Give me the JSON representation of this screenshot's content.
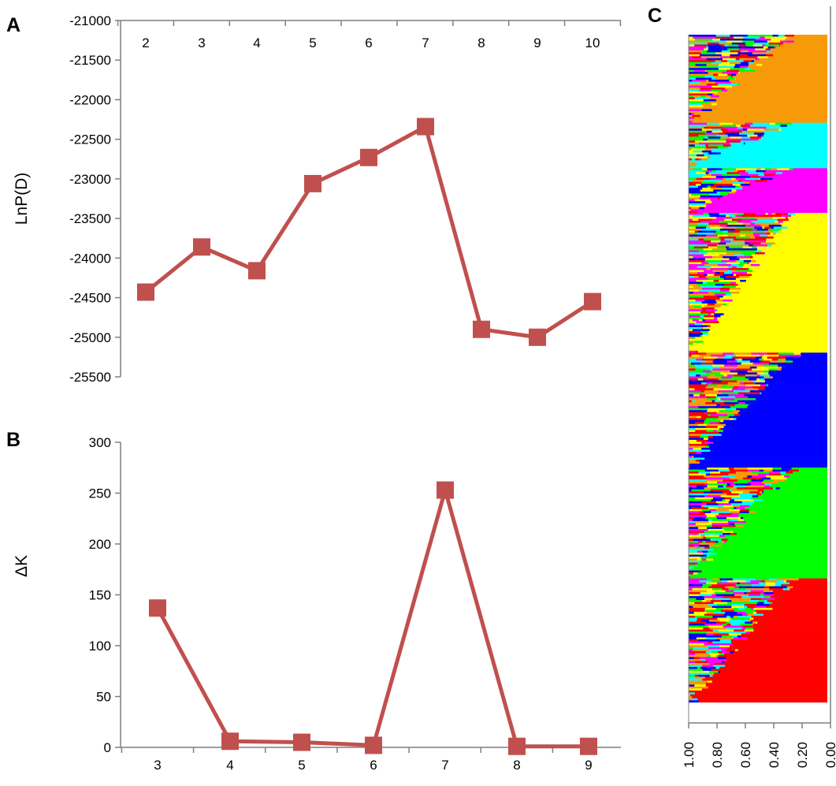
{
  "panels": {
    "a": "A",
    "b": "B",
    "c": "C"
  },
  "chart_data": [
    {
      "id": "A",
      "type": "line",
      "ylabel": "LnP(D)",
      "x": [
        2,
        3,
        4,
        5,
        6,
        7,
        8,
        9,
        10
      ],
      "y": [
        -24430,
        -23860,
        -24160,
        -23060,
        -22730,
        -22340,
        -24900,
        -25000,
        -24550
      ],
      "yticks": [
        -21000,
        -21500,
        -22000,
        -22500,
        -23000,
        -23500,
        -24000,
        -24500,
        -25000,
        -25500
      ],
      "xtick_labels": [
        "2",
        "3",
        "4",
        "5",
        "6",
        "7",
        "8",
        "9",
        "10"
      ],
      "ylim": [
        -25500,
        -21000
      ],
      "x_axis_position": "top",
      "color": "#c0504d",
      "marker": "square"
    },
    {
      "id": "B",
      "type": "line",
      "ylabel": "ΔK",
      "x": [
        3,
        4,
        5,
        6,
        7,
        8,
        9
      ],
      "y": [
        137,
        6,
        5,
        2,
        253,
        1,
        1
      ],
      "yticks": [
        0,
        50,
        100,
        150,
        200,
        250,
        300
      ],
      "xtick_labels": [
        "3",
        "4",
        "5",
        "6",
        "7",
        "8",
        "9"
      ],
      "ylim": [
        0,
        300
      ],
      "color": "#c0504d",
      "marker": "square"
    },
    {
      "id": "C",
      "type": "bar",
      "orientation": "horizontal stacked",
      "clusters": [
        {
          "name": "orange",
          "color": "#f79a09",
          "share": 0.128
        },
        {
          "name": "cyan",
          "color": "#00ffff",
          "share": 0.066
        },
        {
          "name": "magenta",
          "color": "#ff00ff",
          "share": 0.065
        },
        {
          "name": "yellow",
          "color": "#ffff00",
          "share": 0.203
        },
        {
          "name": "blue",
          "color": "#0000ff",
          "share": 0.167
        },
        {
          "name": "green",
          "color": "#00ff00",
          "share": 0.161
        },
        {
          "name": "red",
          "color": "#ff0000",
          "share": 0.18
        }
      ],
      "xtick_labels": [
        "1.00",
        "0.80",
        "0.60",
        "0.40",
        "0.20",
        "0.00"
      ],
      "xlim": [
        1.0,
        0.0
      ]
    }
  ]
}
